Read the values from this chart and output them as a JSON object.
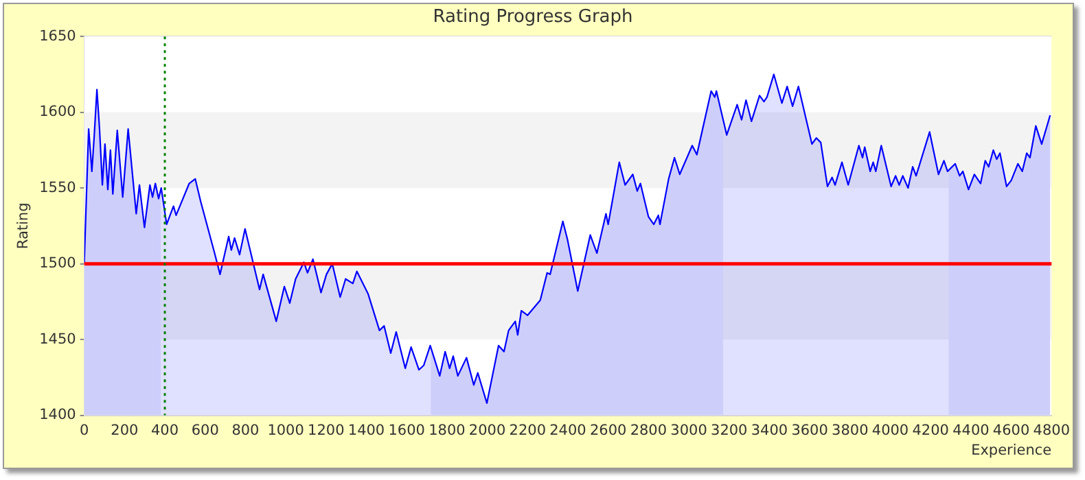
{
  "chart_data": {
    "type": "area",
    "title": "Rating Progress Graph",
    "xlabel": "Experience",
    "ylabel": "Rating",
    "x": [
      0,
      11,
      22,
      38,
      49,
      63,
      76,
      90,
      103,
      117,
      130,
      142,
      164,
      191,
      218,
      258,
      274,
      299,
      326,
      339,
      353,
      369,
      382,
      409,
      443,
      456,
      521,
      551,
      578,
      645,
      674,
      717,
      730,
      746,
      771,
      798,
      870,
      888,
      953,
      993,
      1020,
      1049,
      1090,
      1108,
      1135,
      1175,
      1202,
      1231,
      1270,
      1297,
      1333,
      1353,
      1409,
      1465,
      1488,
      1521,
      1548,
      1593,
      1622,
      1661,
      1685,
      1717,
      1764,
      1791,
      1813,
      1831,
      1854,
      1897,
      1933,
      1953,
      1998,
      2056,
      2083,
      2106,
      2139,
      2151,
      2169,
      2200,
      2263,
      2297,
      2312,
      2375,
      2398,
      2449,
      2511,
      2544,
      2589,
      2600,
      2655,
      2684,
      2722,
      2744,
      2760,
      2800,
      2826,
      2849,
      2857,
      2900,
      2929,
      2955,
      3017,
      3040,
      3111,
      3129,
      3137,
      3188,
      3240,
      3262,
      3284,
      3311,
      3351,
      3373,
      3388,
      3422,
      3462,
      3488,
      3515,
      3544,
      3611,
      3633,
      3655,
      3688,
      3711,
      3726,
      3760,
      3791,
      3844,
      3862,
      3873,
      3900,
      3915,
      3928,
      3955,
      4004,
      4026,
      4044,
      4062,
      4088,
      4111,
      4128,
      4195,
      4239,
      4266,
      4284,
      4322,
      4344,
      4360,
      4388,
      4417,
      4448,
      4471,
      4488,
      4511,
      4528,
      4544,
      4577,
      4600,
      4633,
      4655,
      4677,
      4693,
      4722,
      4751,
      4793
    ],
    "series": [
      {
        "color": "#0000ff",
        "values": [
          1500,
          1545,
          1589,
          1561,
          1583,
          1615,
          1589,
          1552,
          1579,
          1549,
          1575,
          1546,
          1588,
          1544,
          1589,
          1533,
          1552,
          1524,
          1552,
          1544,
          1553,
          1543,
          1550,
          1526,
          1538,
          1532,
          1553,
          1556,
          1541,
          1508,
          1493,
          1518,
          1509,
          1517,
          1506,
          1523,
          1483,
          1493,
          1462,
          1485,
          1474,
          1490,
          1501,
          1494,
          1503,
          1481,
          1493,
          1500,
          1478,
          1490,
          1487,
          1495,
          1480,
          1456,
          1459,
          1441,
          1455,
          1431,
          1445,
          1430,
          1433,
          1446,
          1426,
          1442,
          1431,
          1439,
          1426,
          1438,
          1420,
          1428,
          1408,
          1446,
          1442,
          1456,
          1462,
          1453,
          1469,
          1466,
          1476,
          1494,
          1493,
          1528,
          1516,
          1482,
          1519,
          1507,
          1533,
          1526,
          1567,
          1552,
          1559,
          1548,
          1553,
          1531,
          1526,
          1532,
          1526,
          1556,
          1570,
          1559,
          1578,
          1572,
          1614,
          1610,
          1614,
          1585,
          1605,
          1595,
          1608,
          1594,
          1611,
          1607,
          1610,
          1625,
          1606,
          1617,
          1604,
          1617,
          1579,
          1583,
          1580,
          1551,
          1557,
          1552,
          1567,
          1552,
          1578,
          1570,
          1577,
          1561,
          1567,
          1561,
          1578,
          1551,
          1558,
          1552,
          1558,
          1550,
          1564,
          1558,
          1587,
          1559,
          1568,
          1561,
          1566,
          1558,
          1561,
          1549,
          1559,
          1553,
          1568,
          1564,
          1575,
          1569,
          1573,
          1551,
          1555,
          1566,
          1561,
          1573,
          1570,
          1591,
          1579,
          1598
        ]
      }
    ],
    "xlim": [
      0,
      4800
    ],
    "xticks": [
      0,
      200,
      400,
      600,
      800,
      1000,
      1200,
      1400,
      1600,
      1800,
      2000,
      2200,
      2400,
      2600,
      2800,
      3000,
      3200,
      3400,
      3600,
      3800,
      4000,
      4200,
      4400,
      4600,
      4800
    ],
    "ylim": [
      1400,
      1650
    ],
    "yticks": [
      1400,
      1450,
      1500,
      1550,
      1600,
      1650
    ],
    "grid": "y",
    "legend": false,
    "marker": "none",
    "bands": [
      {
        "axis": "y",
        "from": 1450,
        "to": 1500,
        "color": "#f3f3f3"
      },
      {
        "axis": "y",
        "from": 1550,
        "to": 1600,
        "color": "#f3f3f3"
      },
      {
        "axis": "x",
        "from": 0,
        "to": 380,
        "color": "#ebebfb"
      },
      {
        "axis": "x",
        "from": 1720,
        "to": 3170,
        "color": "#ebebfb"
      },
      {
        "axis": "x",
        "from": 4290,
        "to": 4800,
        "color": "#ebebfb"
      }
    ],
    "ref_lines": [
      {
        "axis": "y",
        "value": 1500,
        "color": "#ff0000",
        "line_style": "solid"
      },
      {
        "axis": "x",
        "value": 400,
        "color": "#008000",
        "line_style": "dotted"
      }
    ]
  }
}
